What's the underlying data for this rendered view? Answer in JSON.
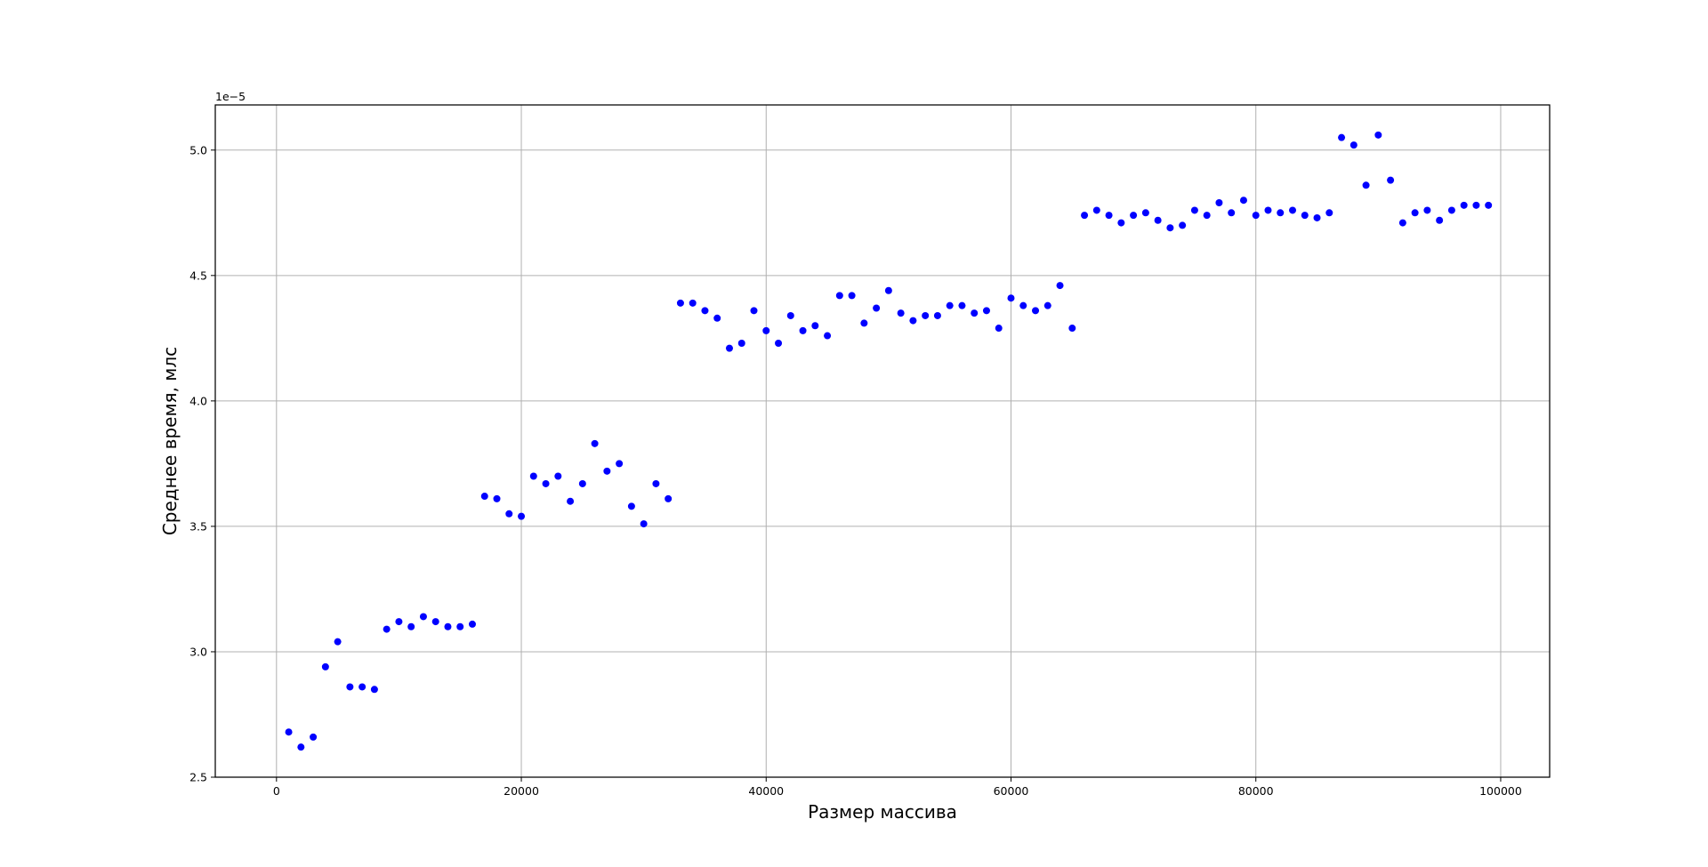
{
  "chart_data": {
    "type": "scatter",
    "title": "",
    "xlabel": "Размер массива",
    "ylabel": "Среднее время, млс",
    "y_offset_label": "1e−5",
    "y_scale_factor": 1e-05,
    "xlim": [
      -5000,
      104000
    ],
    "ylim": [
      2.5,
      5.18
    ],
    "xticks": [
      0,
      20000,
      40000,
      60000,
      80000,
      100000
    ],
    "xtick_labels": [
      "0",
      "20000",
      "40000",
      "60000",
      "80000",
      "100000"
    ],
    "yticks": [
      2.5,
      3.0,
      3.5,
      4.0,
      4.5,
      5.0
    ],
    "ytick_labels": [
      "2.5",
      "3.0",
      "3.5",
      "4.0",
      "4.5",
      "5.0"
    ],
    "grid": true,
    "legend": false,
    "marker_color": "#0000ff",
    "x": [
      1000,
      2000,
      3000,
      4000,
      5000,
      6000,
      7000,
      8000,
      9000,
      10000,
      11000,
      12000,
      13000,
      14000,
      15000,
      16000,
      17000,
      18000,
      19000,
      20000,
      21000,
      22000,
      23000,
      24000,
      25000,
      26000,
      27000,
      28000,
      29000,
      30000,
      31000,
      32000,
      33000,
      34000,
      35000,
      36000,
      37000,
      38000,
      39000,
      40000,
      41000,
      42000,
      43000,
      44000,
      45000,
      46000,
      47000,
      48000,
      49000,
      50000,
      51000,
      52000,
      53000,
      54000,
      55000,
      56000,
      57000,
      58000,
      59000,
      60000,
      61000,
      62000,
      63000,
      64000,
      65000,
      66000,
      67000,
      68000,
      69000,
      70000,
      71000,
      72000,
      73000,
      74000,
      75000,
      76000,
      77000,
      78000,
      79000,
      80000,
      81000,
      82000,
      83000,
      84000,
      85000,
      86000,
      87000,
      88000,
      89000,
      90000,
      91000,
      92000,
      93000,
      94000,
      95000,
      96000,
      97000,
      98000,
      99000
    ],
    "y": [
      2.68,
      2.62,
      2.66,
      2.94,
      3.04,
      2.86,
      2.86,
      2.85,
      3.09,
      3.12,
      3.1,
      3.14,
      3.12,
      3.1,
      3.1,
      3.11,
      3.62,
      3.61,
      3.55,
      3.54,
      3.7,
      3.67,
      3.7,
      3.6,
      3.67,
      3.83,
      3.72,
      3.75,
      3.58,
      3.51,
      3.67,
      3.61,
      4.39,
      4.39,
      4.36,
      4.33,
      4.21,
      4.23,
      4.36,
      4.28,
      4.23,
      4.34,
      4.28,
      4.3,
      4.26,
      4.42,
      4.42,
      4.31,
      4.37,
      4.44,
      4.35,
      4.32,
      4.34,
      4.34,
      4.38,
      4.38,
      4.35,
      4.36,
      4.29,
      4.41,
      4.38,
      4.36,
      4.38,
      4.46,
      4.29,
      4.74,
      4.76,
      4.74,
      4.71,
      4.74,
      4.75,
      4.72,
      4.69,
      4.7,
      4.76,
      4.74,
      4.79,
      4.75,
      4.8,
      4.74,
      4.76,
      4.75,
      4.76,
      4.74,
      4.73,
      4.75,
      5.05,
      5.02,
      4.86,
      5.06,
      4.88,
      4.71,
      4.75,
      4.76,
      4.72,
      4.76,
      4.78,
      4.78,
      4.78
    ]
  }
}
